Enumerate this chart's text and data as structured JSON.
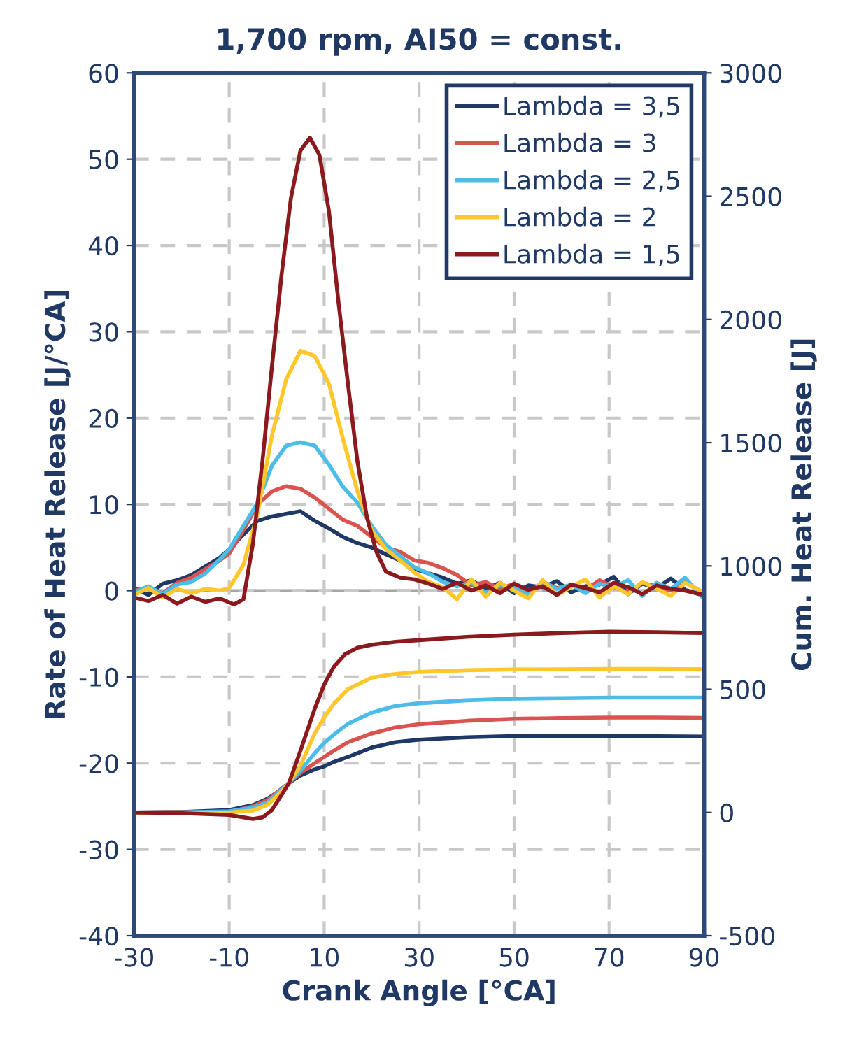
{
  "chart_data": {
    "type": "line",
    "title": "1,700 rpm, AI50 = const.",
    "xlabel": "Crank Angle [°CA]",
    "ylabel": "Rate of Heat Release [J/°CA]",
    "y2label": "Cum. Heat Release [J]",
    "xlim": [
      -30,
      90
    ],
    "xticks": [
      -30,
      -10,
      10,
      30,
      50,
      70,
      90
    ],
    "ylim": [
      -40,
      60
    ],
    "yticks": [
      -40,
      -30,
      -20,
      -10,
      0,
      10,
      20,
      30,
      40,
      50,
      60
    ],
    "y2lim": [
      -500,
      3000
    ],
    "y2ticks": [
      -500,
      0,
      500,
      1000,
      1500,
      2000,
      2500,
      3000
    ],
    "grid": true,
    "legend": "top right",
    "line_style": "solid",
    "marker": "none",
    "ref_lines": [
      {
        "axis": "y",
        "value": 0,
        "color": "#a6a6a6",
        "line_style": "solid"
      }
    ],
    "series": [
      {
        "name": "Lambda = 3,5",
        "color": "#1f3864",
        "x": [
          -30,
          -27,
          -24,
          -21,
          -18,
          -15,
          -12,
          -10,
          -7,
          -4,
          -1,
          2,
          5,
          8,
          11,
          14,
          17,
          20,
          23,
          26,
          29,
          32,
          35,
          38,
          41,
          44,
          47,
          50,
          53,
          56,
          59,
          62,
          65,
          68,
          71,
          74,
          77,
          80,
          83,
          86,
          90
        ],
        "values": [
          0.3,
          -0.5,
          0.8,
          1.2,
          1.8,
          2.8,
          3.8,
          4.8,
          6.5,
          8.1,
          8.6,
          8.9,
          9.2,
          8.1,
          7.2,
          6.2,
          5.5,
          5.0,
          4.2,
          3.5,
          2.5,
          2.0,
          1.5,
          0.8,
          1.2,
          0.2,
          0.9,
          -0.3,
          0.6,
          0.4,
          1.1,
          -0.2,
          0.5,
          0.7,
          1.6,
          -0.4,
          0.8,
          0.3,
          1.4,
          0.1,
          -0.6
        ]
      },
      {
        "name": "Lambda = 3",
        "color": "#d9534f",
        "x": [
          -30,
          -27,
          -24,
          -21,
          -18,
          -15,
          -12,
          -10,
          -7,
          -4,
          -1,
          2,
          5,
          8,
          11,
          14,
          17,
          20,
          23,
          26,
          29,
          32,
          35,
          38,
          41,
          44,
          47,
          50,
          53,
          56,
          59,
          62,
          65,
          68,
          71,
          74,
          77,
          80,
          83,
          86,
          90
        ],
        "values": [
          0.0,
          0.4,
          -0.3,
          0.9,
          1.5,
          2.5,
          3.5,
          4.3,
          7.0,
          10.0,
          11.5,
          12.1,
          11.8,
          10.8,
          9.5,
          8.2,
          7.5,
          6.2,
          5.0,
          4.5,
          3.5,
          3.2,
          2.6,
          1.8,
          0.6,
          1.0,
          0.2,
          0.8,
          -0.4,
          1.0,
          0.3,
          0.6,
          0.1,
          1.2,
          0.4,
          -0.2,
          0.9,
          0.5,
          0.0,
          1.0,
          -0.3
        ]
      },
      {
        "name": "Lambda = 2,5",
        "color": "#4bbde8",
        "x": [
          -30,
          -27,
          -24,
          -21,
          -18,
          -15,
          -12,
          -10,
          -7,
          -4,
          -1,
          2,
          5,
          8,
          11,
          14,
          17,
          20,
          23,
          26,
          29,
          32,
          35,
          38,
          41,
          44,
          47,
          50,
          53,
          56,
          59,
          62,
          65,
          68,
          71,
          74,
          77,
          80,
          83,
          86,
          90
        ],
        "values": [
          -0.2,
          0.5,
          -0.4,
          0.7,
          1.0,
          2.0,
          3.6,
          4.8,
          7.5,
          10.2,
          14.5,
          16.8,
          17.2,
          16.8,
          14.6,
          12.0,
          10.2,
          7.5,
          5.3,
          4.0,
          2.7,
          2.0,
          1.0,
          0.5,
          0.9,
          -0.2,
          0.6,
          0.3,
          -0.5,
          1.0,
          0.2,
          0.7,
          -0.3,
          0.8,
          0.4,
          1.2,
          -0.6,
          0.9,
          0.2,
          1.5,
          -1.0
        ]
      },
      {
        "name": "Lambda = 2",
        "color": "#ffc72c",
        "x": [
          -30,
          -27,
          -24,
          -21,
          -18,
          -15,
          -12,
          -10,
          -7,
          -4,
          -1,
          2,
          5,
          8,
          11,
          14,
          17,
          20,
          23,
          26,
          29,
          32,
          35,
          38,
          41,
          44,
          47,
          50,
          53,
          56,
          59,
          62,
          65,
          68,
          71,
          74,
          77,
          80,
          83,
          86,
          90
        ],
        "values": [
          -0.5,
          0.3,
          -0.8,
          0.2,
          -0.3,
          0.2,
          0.0,
          0.3,
          3.0,
          9.0,
          18.0,
          24.5,
          27.8,
          27.2,
          24.0,
          17.5,
          11.5,
          7.0,
          4.8,
          3.5,
          2.1,
          1.0,
          0.4,
          -1.0,
          1.3,
          -0.7,
          0.9,
          0.0,
          -0.9,
          1.2,
          -0.5,
          0.4,
          1.3,
          -0.8,
          0.5,
          -0.4,
          1.0,
          0.2,
          -0.6,
          0.9,
          -0.2
        ]
      },
      {
        "name": "Lambda = 1,5",
        "color": "#8b1a1f",
        "x": [
          -30,
          -27,
          -24,
          -21,
          -18,
          -15,
          -12,
          -9,
          -7,
          -5,
          -3,
          -1,
          1,
          3,
          5,
          7,
          9,
          11,
          13,
          15,
          17,
          19,
          21,
          23,
          26,
          29,
          32,
          35,
          38,
          41,
          44,
          47,
          50,
          53,
          56,
          59,
          62,
          65,
          68,
          71,
          74,
          77,
          80,
          83,
          86,
          90
        ],
        "values": [
          -0.8,
          -1.2,
          -0.5,
          -1.5,
          -0.7,
          -1.3,
          -0.9,
          -1.6,
          -1.0,
          5.5,
          15.0,
          26.0,
          36.5,
          45.5,
          51.0,
          52.5,
          50.5,
          44.0,
          33.5,
          24.0,
          15.0,
          8.5,
          4.5,
          2.2,
          1.5,
          1.3,
          0.8,
          0.2,
          0.9,
          0.0,
          0.6,
          -0.3,
          0.8,
          0.1,
          0.5,
          -0.5,
          0.7,
          0.3,
          -0.2,
          0.9,
          0.4,
          -0.4,
          0.6,
          0.2,
          0.0,
          -0.5
        ]
      },
      {
        "axis": "y2",
        "color": "#1f3864",
        "x": [
          -30,
          -20,
          -10,
          -5,
          -2,
          0,
          2.6,
          5,
          8,
          10,
          12,
          15,
          20,
          25,
          30,
          40,
          50,
          60,
          70,
          80,
          90
        ],
        "values": [
          0,
          2,
          10,
          30,
          55,
          80,
          120,
          150,
          175,
          187,
          205,
          225,
          263,
          285,
          295,
          305,
          310,
          310,
          310,
          309,
          308
        ]
      },
      {
        "axis": "y2",
        "color": "#d9534f",
        "x": [
          -30,
          -20,
          -10,
          -5,
          -2,
          0,
          2.6,
          5,
          8,
          10,
          12,
          15,
          20,
          25,
          30,
          40,
          50,
          60,
          70,
          80,
          90
        ],
        "values": [
          0,
          2,
          1,
          25,
          50,
          80,
          120,
          160,
          200,
          225,
          250,
          285,
          320,
          345,
          358,
          372,
          380,
          383,
          385,
          385,
          384
        ]
      },
      {
        "axis": "y2",
        "color": "#4bbde8",
        "x": [
          -30,
          -20,
          -10,
          -5,
          -2,
          0,
          2.6,
          5,
          8,
          10,
          12,
          15,
          20,
          25,
          30,
          40,
          50,
          60,
          70,
          80,
          90
        ],
        "values": [
          0,
          1,
          5,
          20,
          40,
          75,
          120,
          170,
          240,
          282,
          315,
          360,
          405,
          432,
          443,
          455,
          462,
          464,
          466,
          466,
          466
        ]
      },
      {
        "axis": "y2",
        "color": "#ffc72c",
        "x": [
          -30,
          -20,
          -10,
          -5,
          -2,
          0,
          2.6,
          5,
          8,
          10,
          12,
          15,
          20,
          25,
          30,
          40,
          50,
          60,
          70,
          80,
          90
        ],
        "values": [
          0,
          0,
          0,
          8,
          30,
          65,
          120,
          190,
          320,
          386,
          440,
          500,
          547,
          562,
          570,
          577,
          580,
          581,
          582,
          582,
          581
        ]
      },
      {
        "axis": "y2",
        "color": "#8b1a1f",
        "x": [
          -30,
          -20,
          -10,
          -5,
          -3,
          -1,
          1,
          2.6,
          5,
          8,
          10,
          12,
          14.4,
          17,
          20,
          25,
          30,
          40,
          50,
          60,
          70,
          80,
          90
        ],
        "values": [
          0,
          -3,
          -10,
          -26,
          -20,
          10,
          70,
          120,
          250,
          420,
          519,
          590,
          642,
          668,
          680,
          692,
          699,
          712,
          721,
          728,
          733,
          731,
          728
        ]
      }
    ]
  }
}
